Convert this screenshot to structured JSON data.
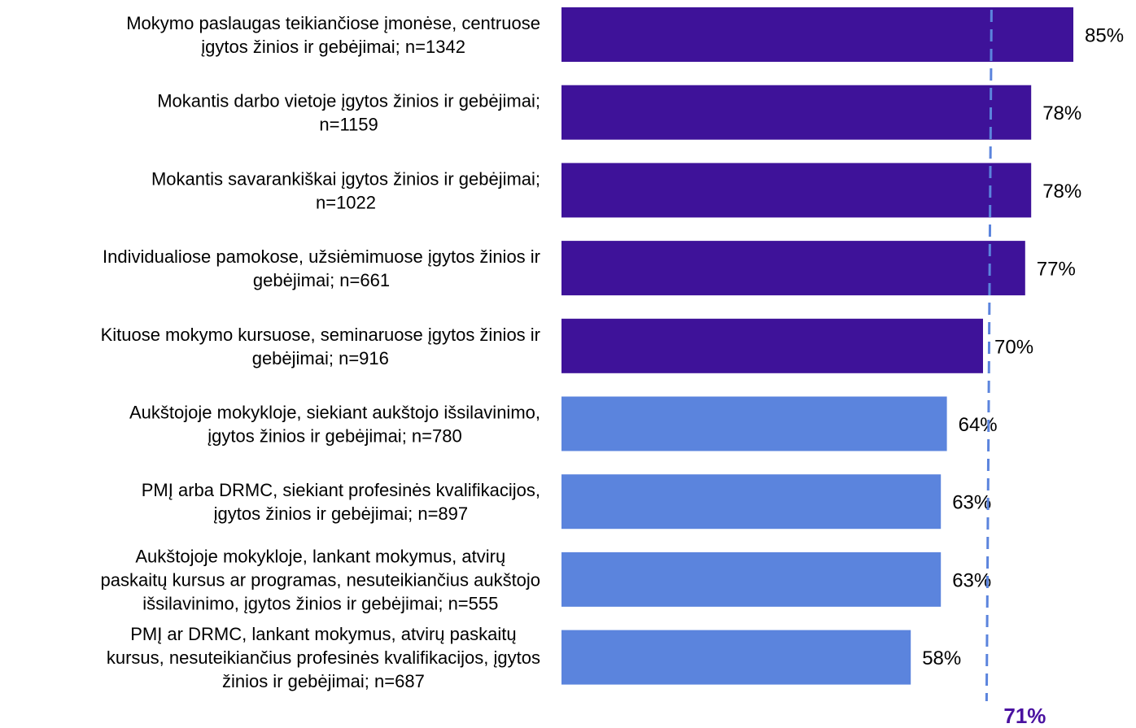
{
  "colors": {
    "dark_bar": "#3e1299",
    "light_bar": "#5b84dd",
    "reference_line": "#5b84dd",
    "reference_label": "#4a12a0"
  },
  "chart_data": {
    "type": "bar",
    "orientation": "horizontal",
    "unit": "%",
    "xlim": [
      0,
      100
    ],
    "grid": false,
    "legend": "none",
    "categories": [
      [
        "Mokymo paslaugas teikiančiose įmonėse, centruose",
        "įgytos žinios ir gebėjimai; n=1342"
      ],
      [
        "Mokantis darbo vietoje įgytos žinios ir gebėjimai;",
        "n=1159"
      ],
      [
        "Mokantis savarankiškai įgytos žinios ir gebėjimai;",
        "n=1022"
      ],
      [
        "Individualiose pamokose, užsiėmimuose įgytos žinios ir",
        "gebėjimai; n=661"
      ],
      [
        "Kituose mokymo kursuose, seminaruose įgytos žinios ir",
        "gebėjimai; n=916"
      ],
      [
        "Aukštojoje mokykloje, siekiant aukštojo išsilavinimo,",
        "įgytos žinios ir gebėjimai; n=780"
      ],
      [
        "PMĮ arba DRMC, siekiant profesinės kvalifikacijos,",
        "įgytos žinios ir gebėjimai;  n=897"
      ],
      [
        "Aukštojoje mokykloje, lankant mokymus, atvirų",
        "paskaitų kursus ar programas, nesuteikiančius aukštojo",
        "išsilavinimo, įgytos žinios ir gebėjimai; n=555"
      ],
      [
        "PMĮ ar DRMC, lankant mokymus, atvirų paskaitų",
        "kursus, nesuteikiančius profesinės kvalifikacijos, įgytos",
        "žinios ir gebėjimai; n=687"
      ]
    ],
    "values": [
      85,
      78,
      78,
      77,
      70,
      64,
      63,
      63,
      58
    ],
    "value_labels": [
      "85%",
      "78%",
      "78%",
      "77%",
      "70%",
      "64%",
      "63%",
      "63%",
      "58%"
    ],
    "bar_color_group": [
      "dark",
      "dark",
      "dark",
      "dark",
      "dark",
      "light",
      "light",
      "light",
      "light"
    ],
    "reference_line": {
      "value": 71,
      "label": "71%",
      "style": "dashed"
    }
  }
}
